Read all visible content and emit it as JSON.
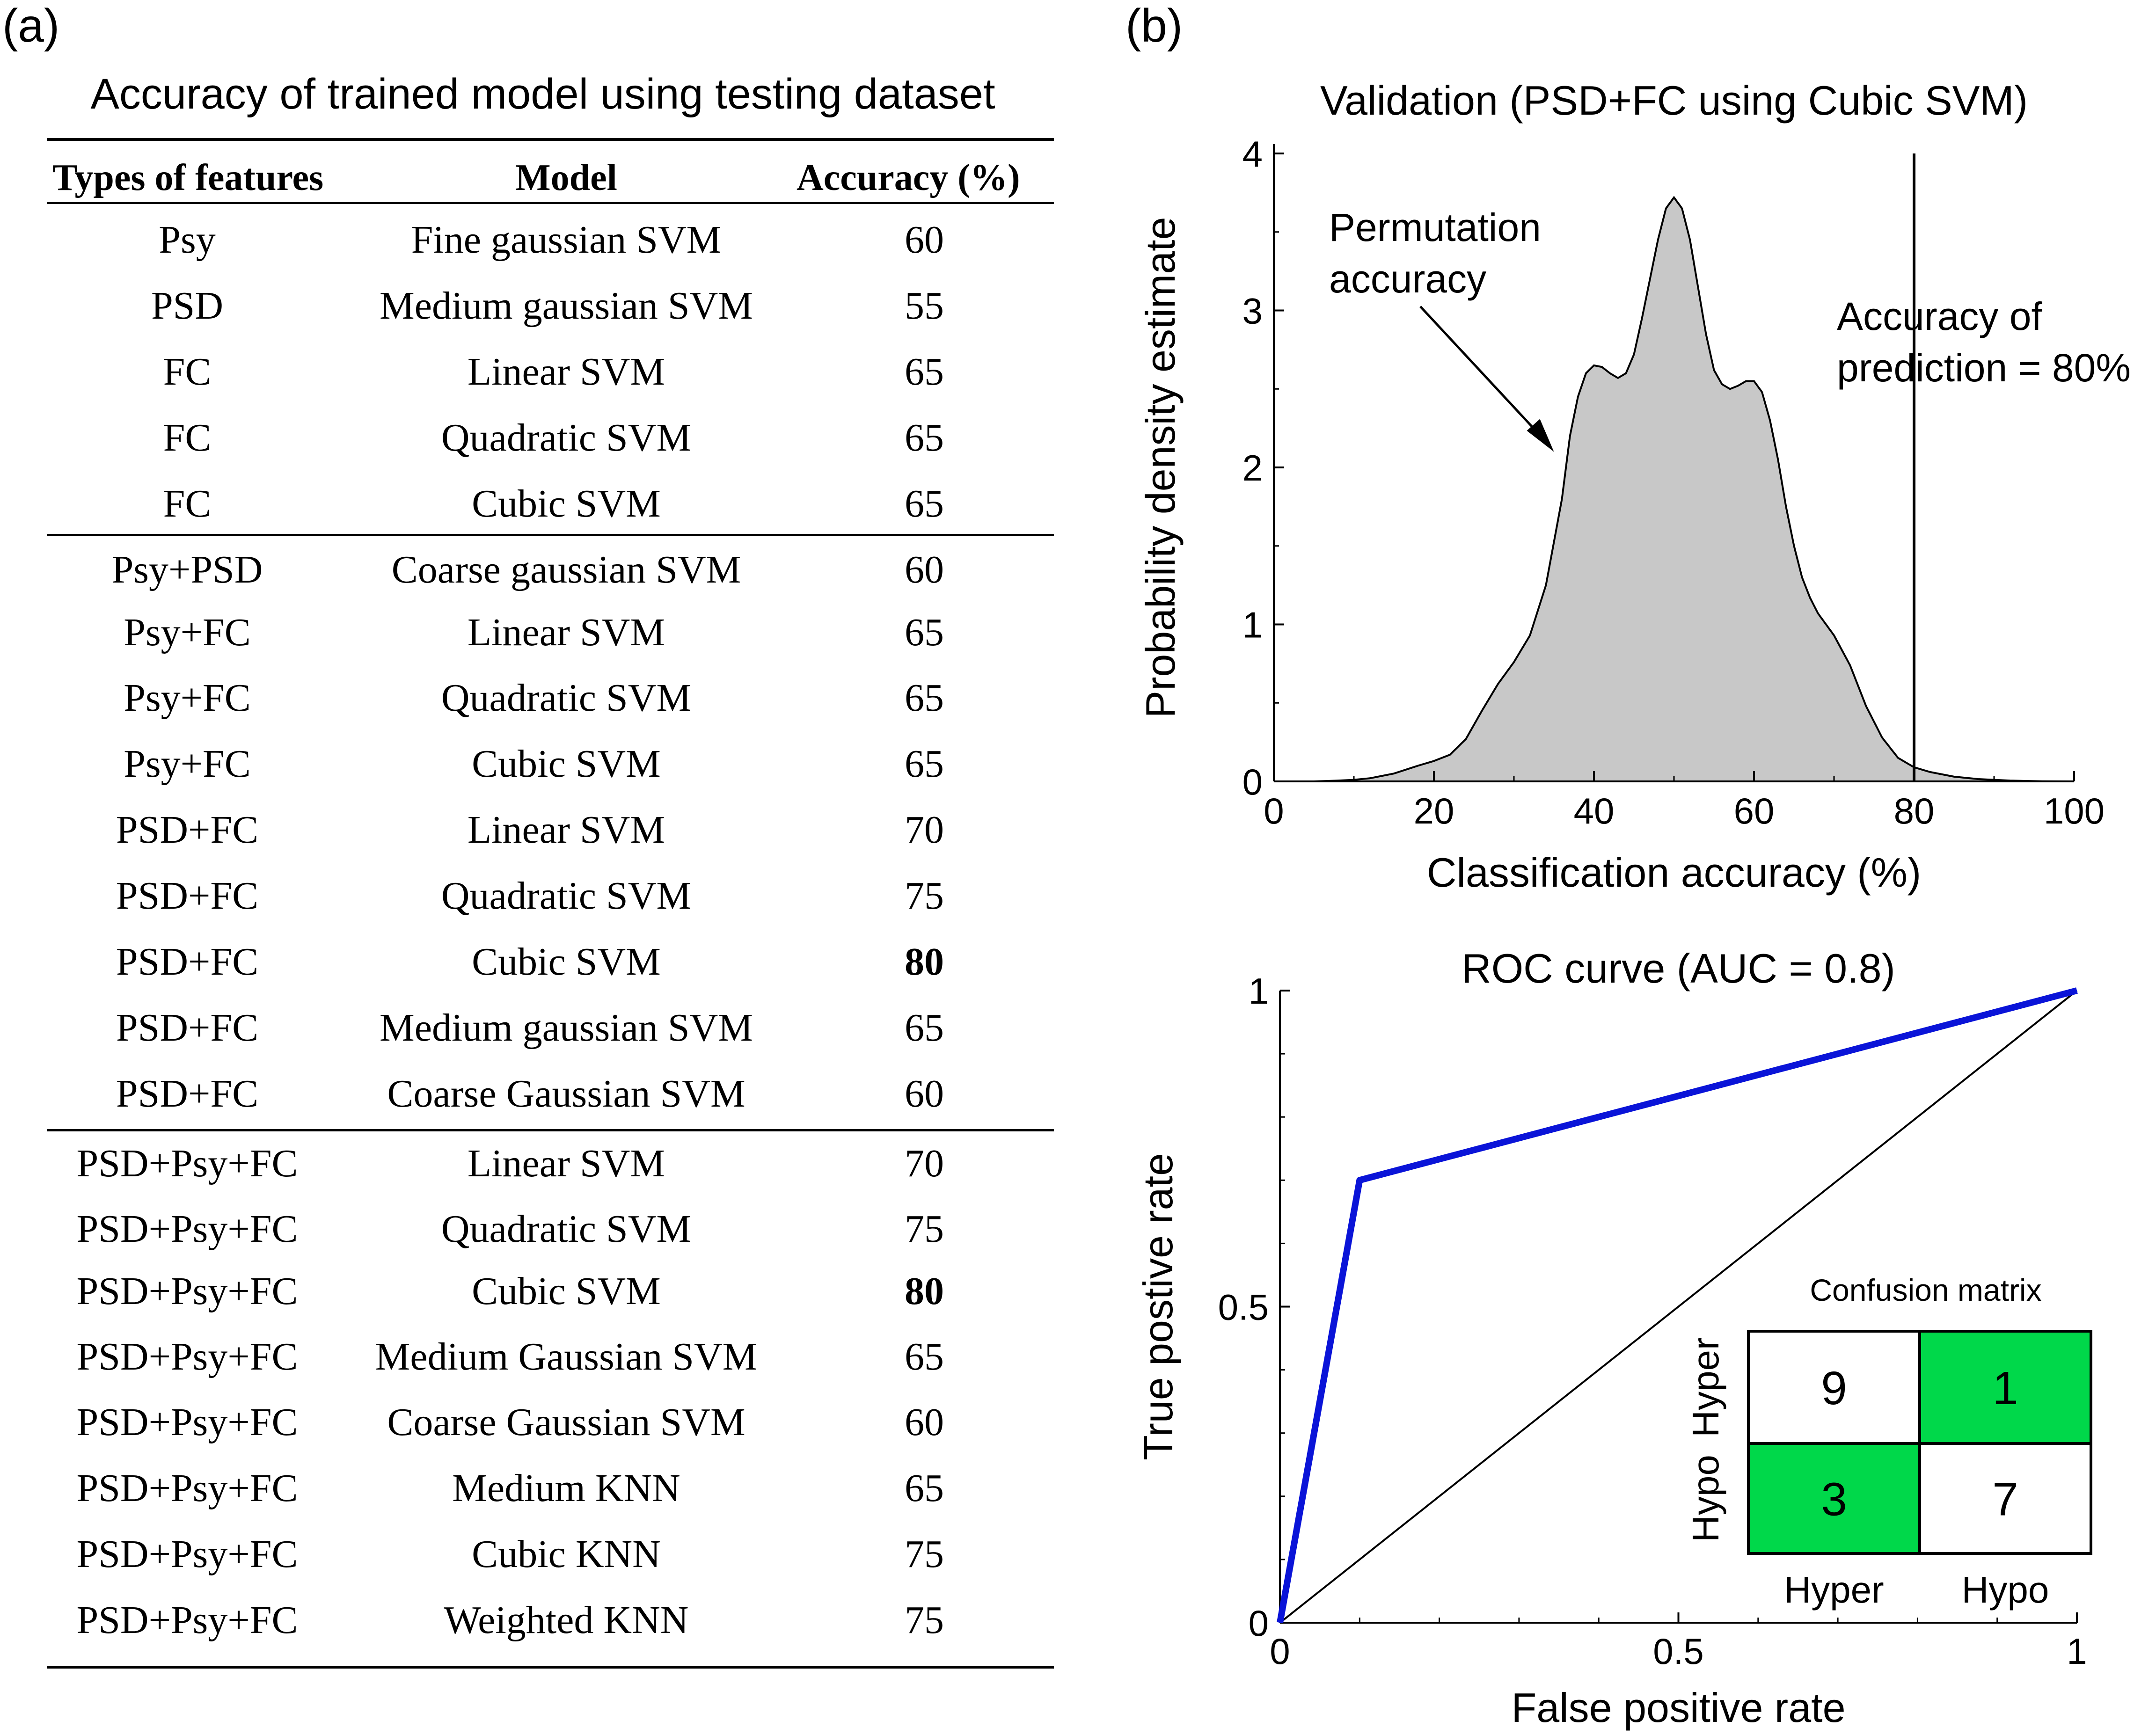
{
  "panel_a": {
    "label": "(a)",
    "title": "Accuracy of trained model using testing dataset",
    "headers": [
      "Types of features",
      "Model",
      "Accuracy (%)"
    ],
    "groups": [
      [
        {
          "features": "Psy",
          "model": "Fine gaussian SVM",
          "accuracy": "60",
          "bold": false
        },
        {
          "features": "PSD",
          "model": "Medium gaussian SVM",
          "accuracy": "55",
          "bold": false
        },
        {
          "features": "FC",
          "model": "Linear SVM",
          "accuracy": "65",
          "bold": false
        },
        {
          "features": "FC",
          "model": "Quadratic SVM",
          "accuracy": "65",
          "bold": false
        },
        {
          "features": "FC",
          "model": "Cubic SVM",
          "accuracy": "65",
          "bold": false
        }
      ],
      [
        {
          "features": "Psy+PSD",
          "model": "Coarse gaussian SVM",
          "accuracy": "60",
          "bold": false
        },
        {
          "features": "Psy+FC",
          "model": "Linear SVM",
          "accuracy": "65",
          "bold": false
        },
        {
          "features": "Psy+FC",
          "model": "Quadratic SVM",
          "accuracy": "65",
          "bold": false
        },
        {
          "features": "Psy+FC",
          "model": "Cubic SVM",
          "accuracy": "65",
          "bold": false
        },
        {
          "features": "PSD+FC",
          "model": "Linear SVM",
          "accuracy": "70",
          "bold": false
        },
        {
          "features": "PSD+FC",
          "model": "Quadratic SVM",
          "accuracy": "75",
          "bold": false
        },
        {
          "features": "PSD+FC",
          "model": "Cubic SVM",
          "accuracy": "80",
          "bold": true
        },
        {
          "features": "PSD+FC",
          "model": "Medium gaussian SVM",
          "accuracy": "65",
          "bold": false
        },
        {
          "features": "PSD+FC",
          "model": "Coarse Gaussian SVM",
          "accuracy": "60",
          "bold": false
        }
      ],
      [
        {
          "features": "PSD+Psy+FC",
          "model": "Linear SVM",
          "accuracy": "70",
          "bold": false
        },
        {
          "features": "PSD+Psy+FC",
          "model": "Quadratic SVM",
          "accuracy": "75",
          "bold": false
        },
        {
          "features": "PSD+Psy+FC",
          "model": "Cubic SVM",
          "accuracy": "80",
          "bold": true
        },
        {
          "features": "PSD+Psy+FC",
          "model": "Medium Gaussian SVM",
          "accuracy": "65",
          "bold": false
        },
        {
          "features": "PSD+Psy+FC",
          "model": "Coarse Gaussian SVM",
          "accuracy": "60",
          "bold": false
        },
        {
          "features": "PSD+Psy+FC",
          "model": "Medium KNN",
          "accuracy": "65",
          "bold": false
        },
        {
          "features": "PSD+Psy+FC",
          "model": "Cubic KNN",
          "accuracy": "75",
          "bold": false
        },
        {
          "features": "PSD+Psy+FC",
          "model": "Weighted KNN",
          "accuracy": "75",
          "bold": false
        }
      ]
    ]
  },
  "panel_b": {
    "label": "(b)"
  },
  "chart_data": [
    {
      "type": "area",
      "title": "Validation (PSD+FC using Cubic SVM)",
      "xlabel": "Classification accuracy (%)",
      "ylabel": "Probability density estimate",
      "xlim": [
        0,
        100
      ],
      "ylim": [
        0,
        4
      ],
      "xticks": [
        0,
        20,
        40,
        60,
        80,
        100
      ],
      "yticks": [
        0,
        1,
        2,
        3,
        4
      ],
      "grid": false,
      "fill_color": "#c8c8c8",
      "x": [
        0,
        5,
        8,
        10,
        12,
        15,
        18,
        20,
        22,
        24,
        26,
        28,
        30,
        32,
        34,
        36,
        37,
        38,
        39,
        40,
        41,
        42,
        43,
        44,
        45,
        46,
        47,
        48,
        49,
        50,
        51,
        52,
        53,
        54,
        55,
        56,
        57,
        58,
        59,
        60,
        61,
        62,
        63,
        64,
        65,
        66,
        67,
        68,
        70,
        72,
        74,
        76,
        78,
        80,
        82,
        85,
        88,
        92,
        96,
        100
      ],
      "y": [
        0,
        0,
        0.005,
        0.01,
        0.02,
        0.05,
        0.1,
        0.13,
        0.17,
        0.27,
        0.45,
        0.62,
        0.76,
        0.93,
        1.25,
        1.8,
        2.2,
        2.45,
        2.6,
        2.65,
        2.64,
        2.6,
        2.57,
        2.6,
        2.72,
        2.95,
        3.2,
        3.45,
        3.65,
        3.72,
        3.65,
        3.45,
        3.15,
        2.85,
        2.62,
        2.53,
        2.5,
        2.52,
        2.55,
        2.55,
        2.48,
        2.3,
        2.05,
        1.75,
        1.5,
        1.3,
        1.17,
        1.07,
        0.93,
        0.74,
        0.48,
        0.28,
        0.15,
        0.09,
        0.06,
        0.03,
        0.015,
        0.005,
        0.001,
        0
      ],
      "annotations": [
        {
          "text": [
            "Permutation",
            "accuracy"
          ],
          "arrow_to": [
            35,
            2.1
          ]
        },
        {
          "text": [
            "Accuracy of",
            "prediction = 80%"
          ],
          "vline_x": 80
        }
      ]
    },
    {
      "type": "line",
      "title": "ROC curve (AUC = 0.8)",
      "xlabel": "False positive rate",
      "ylabel": "True postive rate",
      "xlim": [
        0,
        1
      ],
      "ylim": [
        0,
        1
      ],
      "xticks": [
        0,
        0.5,
        1
      ],
      "yticks": [
        0,
        0.5,
        1
      ],
      "xtick_labels": [
        "0",
        "0.5",
        "1"
      ],
      "ytick_labels": [
        "0",
        "0.5",
        "1"
      ],
      "grid": false,
      "series": [
        {
          "x": [
            0,
            0.1,
            1
          ],
          "y": [
            0,
            0.7,
            1
          ],
          "color": "#0a14d8"
        },
        {
          "x": [
            0,
            1
          ],
          "y": [
            0,
            1
          ],
          "color": "#000000"
        }
      ]
    },
    {
      "type": "heatmap",
      "title": "Confusion matrix",
      "row_labels": [
        "Hyper",
        "Hypo"
      ],
      "col_labels": [
        "Hyper",
        "Hypo"
      ],
      "values": [
        [
          9,
          1
        ],
        [
          3,
          7
        ]
      ],
      "highlight_color": "#00d84a",
      "highlight": [
        [
          false,
          true
        ],
        [
          true,
          false
        ]
      ]
    }
  ]
}
